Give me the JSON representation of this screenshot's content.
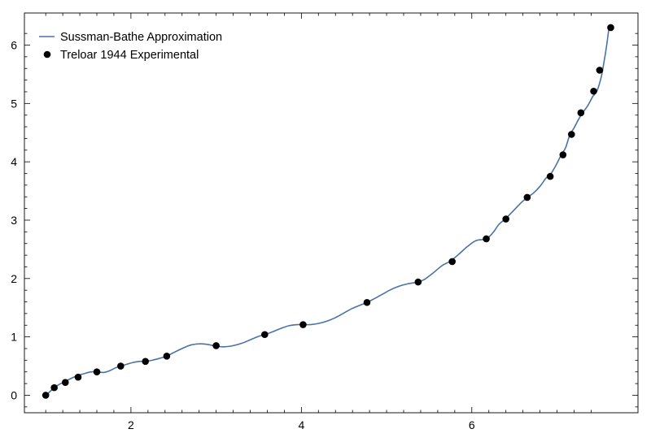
{
  "chart_data": {
    "type": "line",
    "title": "",
    "xlabel": "",
    "ylabel": "",
    "xlim": [
      0.75,
      7.95
    ],
    "ylim": [
      -0.3,
      6.55
    ],
    "xticks": [
      2,
      4,
      6
    ],
    "yticks": [
      0,
      1,
      2,
      3,
      4,
      5,
      6
    ],
    "grid": false,
    "legend_position": "top-left",
    "series": [
      {
        "name": "Sussman-Bathe Approximation",
        "kind": "line",
        "color": "#4a72a8",
        "x": [
          1.0,
          1.04,
          1.1,
          1.15,
          1.22,
          1.3,
          1.38,
          1.45,
          1.53,
          1.6,
          1.68,
          1.75,
          1.82,
          1.88,
          1.95,
          2.02,
          2.1,
          2.17,
          2.25,
          2.33,
          2.42,
          2.5,
          2.6,
          2.7,
          2.8,
          2.9,
          3.0,
          3.1,
          3.2,
          3.3,
          3.4,
          3.5,
          3.57,
          3.65,
          3.75,
          3.85,
          3.95,
          4.02,
          4.1,
          4.2,
          4.3,
          4.4,
          4.5,
          4.6,
          4.7,
          4.77,
          4.85,
          4.95,
          5.05,
          5.15,
          5.25,
          5.37,
          5.45,
          5.55,
          5.65,
          5.75,
          5.85,
          5.95,
          6.05,
          6.17,
          6.25,
          6.32,
          6.4,
          6.5,
          6.58,
          6.65,
          6.72,
          6.8,
          6.87,
          6.92,
          6.98,
          7.05,
          7.1,
          7.15,
          7.2,
          7.25,
          7.3,
          7.36,
          7.42,
          7.47,
          7.52,
          7.55,
          7.58,
          7.61
        ],
        "y": [
          0.0,
          0.05,
          0.13,
          0.18,
          0.23,
          0.29,
          0.34,
          0.37,
          0.4,
          0.4,
          0.39,
          0.42,
          0.47,
          0.5,
          0.53,
          0.56,
          0.58,
          0.58,
          0.6,
          0.63,
          0.67,
          0.73,
          0.8,
          0.86,
          0.88,
          0.87,
          0.84,
          0.83,
          0.85,
          0.89,
          0.95,
          1.01,
          1.04,
          1.08,
          1.14,
          1.19,
          1.21,
          1.21,
          1.21,
          1.23,
          1.27,
          1.33,
          1.41,
          1.49,
          1.55,
          1.59,
          1.65,
          1.73,
          1.81,
          1.87,
          1.91,
          1.94,
          1.99,
          2.1,
          2.22,
          2.3,
          2.42,
          2.55,
          2.65,
          2.68,
          2.79,
          2.93,
          3.03,
          3.18,
          3.3,
          3.39,
          3.46,
          3.58,
          3.72,
          3.78,
          3.92,
          4.12,
          4.24,
          4.46,
          4.58,
          4.72,
          4.84,
          4.96,
          5.12,
          5.22,
          5.46,
          5.7,
          5.97,
          6.3
        ]
      },
      {
        "name": "Treloar 1944 Experimental",
        "kind": "scatter",
        "color": "#000000",
        "x": [
          1.0,
          1.1,
          1.23,
          1.38,
          1.6,
          1.88,
          2.17,
          2.42,
          3.0,
          3.57,
          4.02,
          4.77,
          5.37,
          5.77,
          6.17,
          6.4,
          6.65,
          6.92,
          7.07,
          7.17,
          7.28,
          7.43,
          7.5,
          7.63
        ],
        "y": [
          0.0,
          0.13,
          0.22,
          0.31,
          0.4,
          0.5,
          0.58,
          0.67,
          0.85,
          1.04,
          1.21,
          1.59,
          1.94,
          2.29,
          2.68,
          3.02,
          3.39,
          3.75,
          4.12,
          4.47,
          4.84,
          5.21,
          5.57,
          6.3
        ]
      }
    ]
  }
}
